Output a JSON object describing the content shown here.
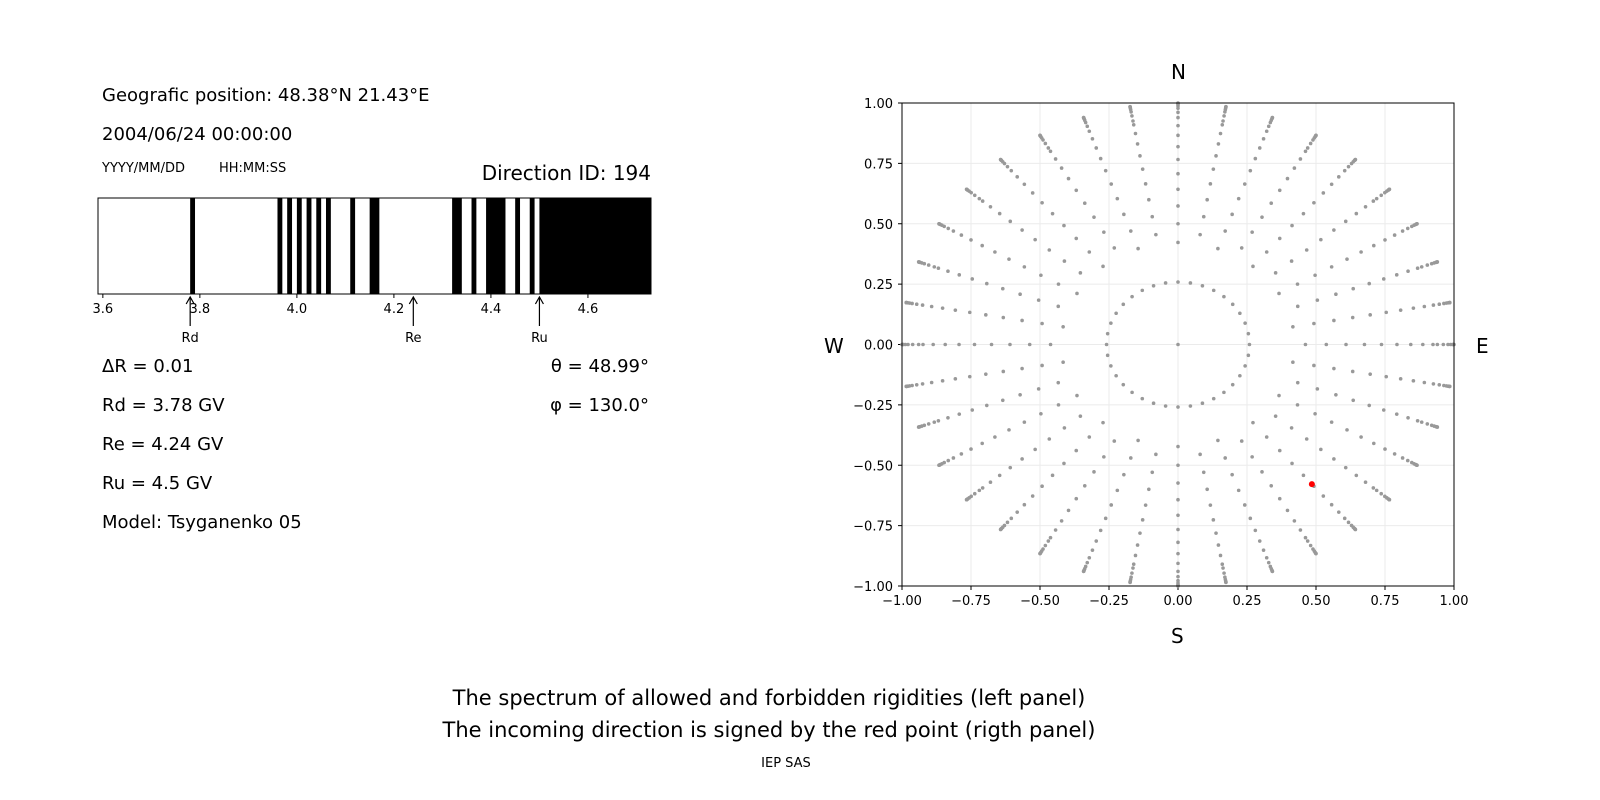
{
  "left_panel": {
    "position": "Geografic position: 48.38°N 21.43°E",
    "datetime": "2004/06/24 00:00:00",
    "date_format": "YYYY/MM/DD",
    "time_format": "HH:MM:SS",
    "direction": "Direction ID: 194",
    "delta_r": "ΔR = 0.01",
    "rd": "Rd = 3.78 GV",
    "re": "Re = 4.24 GV",
    "ru": "Ru = 4.5 GV",
    "model": "Model: Tsyganenko 05",
    "theta": "θ = 48.99°",
    "phi": "φ = 130.0°"
  },
  "compass": {
    "n": "N",
    "s": "S",
    "w": "W",
    "e": "E"
  },
  "captions": {
    "line1": "The spectrum of allowed and forbidden rigidities (left panel)",
    "line2": "The incoming direction is signed by the red point (rigth panel)",
    "credit": "IEP SAS"
  },
  "chart_data": [
    {
      "type": "bar",
      "xlim": [
        3.59,
        4.73
      ],
      "xticks": [
        "3.6",
        "3.8",
        "4.0",
        "4.2",
        "4.4",
        "4.6"
      ],
      "forbidden_bands": [
        [
          3.78,
          3.79
        ],
        [
          3.96,
          3.97
        ],
        [
          3.98,
          3.99
        ],
        [
          4.0,
          4.01
        ],
        [
          4.02,
          4.03
        ],
        [
          4.04,
          4.05
        ],
        [
          4.06,
          4.07
        ],
        [
          4.11,
          4.12
        ],
        [
          4.15,
          4.17
        ],
        [
          4.32,
          4.34
        ],
        [
          4.36,
          4.37
        ],
        [
          4.39,
          4.43
        ],
        [
          4.45,
          4.46
        ],
        [
          4.48,
          4.49
        ],
        [
          4.5,
          4.73
        ]
      ],
      "band_color": "#000000",
      "markers": [
        {
          "label": "Rd",
          "x": 3.78
        },
        {
          "label": "Re",
          "x": 4.24
        },
        {
          "label": "Ru",
          "x": 4.5
        }
      ]
    },
    {
      "type": "scatter",
      "xlim": [
        -1,
        1
      ],
      "ylim": [
        -1,
        1
      ],
      "xticks": [
        "−1.00",
        "−0.75",
        "−0.50",
        "−0.25",
        "0.00",
        "0.25",
        "0.50",
        "0.75",
        "1.00"
      ],
      "yticks": [
        "−1.00",
        "−0.75",
        "−0.50",
        "−0.25",
        "0.00",
        "0.25",
        "0.50",
        "0.75",
        "1.00"
      ],
      "grid": true,
      "grid_color": "#ebebeb",
      "directions_color": "#999999",
      "selected_point": {
        "x": 0.485,
        "y": -0.578,
        "color": "#ff0000"
      }
    }
  ]
}
